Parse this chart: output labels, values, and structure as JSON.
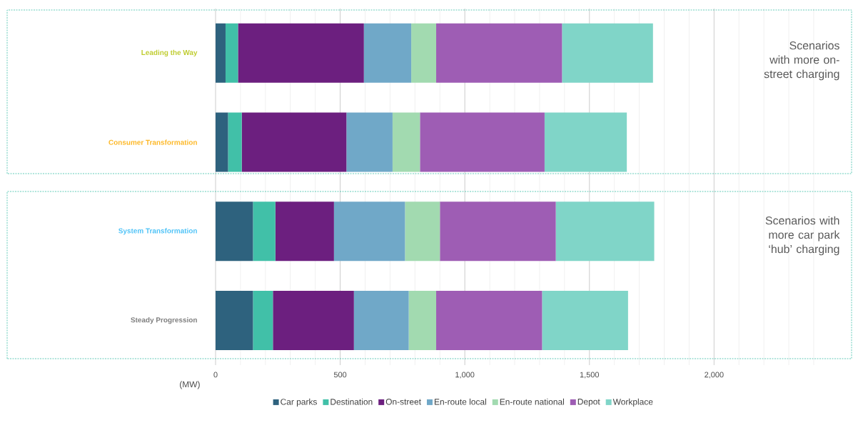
{
  "chart_data": {
    "type": "bar",
    "orientation": "horizontal",
    "stacked": true,
    "categories": [
      "Leading the Way",
      "Consumer Transformation",
      "System Transformation",
      "Steady Progression"
    ],
    "series": [
      {
        "name": "Car parks",
        "color": "#2e627e",
        "values": [
          40,
          50,
          150,
          150
        ]
      },
      {
        "name": "Destination",
        "color": "#41c0a8",
        "values": [
          50,
          55,
          90,
          80
        ]
      },
      {
        "name": "On-street",
        "color": "#6c1f7f",
        "values": [
          505,
          420,
          235,
          325
        ]
      },
      {
        "name": "En-route local",
        "color": "#70a8c8",
        "values": [
          190,
          185,
          285,
          220
        ]
      },
      {
        "name": "En-route national",
        "color": "#a2dab0",
        "values": [
          100,
          110,
          140,
          110
        ]
      },
      {
        "name": "Depot",
        "color": "#9e5db4",
        "values": [
          505,
          500,
          465,
          425
        ]
      },
      {
        "name": "Workplace",
        "color": "#80d5c8",
        "values": [
          365,
          330,
          395,
          345
        ]
      }
    ],
    "xlabel": "(MW)",
    "xlim": [
      0,
      2400
    ],
    "xticks": [
      0,
      500,
      {
        "value": 1000,
        "label": "1,000"
      },
      {
        "value": 1500,
        "label": "1,500"
      },
      {
        "value": 2000,
        "label": "2,000"
      }
    ],
    "grid": "x",
    "legend": "bottom",
    "annotations": [
      "Scenarios with more on-street charging",
      "Scenarios with more car park ‘hub’ charging"
    ]
  }
}
